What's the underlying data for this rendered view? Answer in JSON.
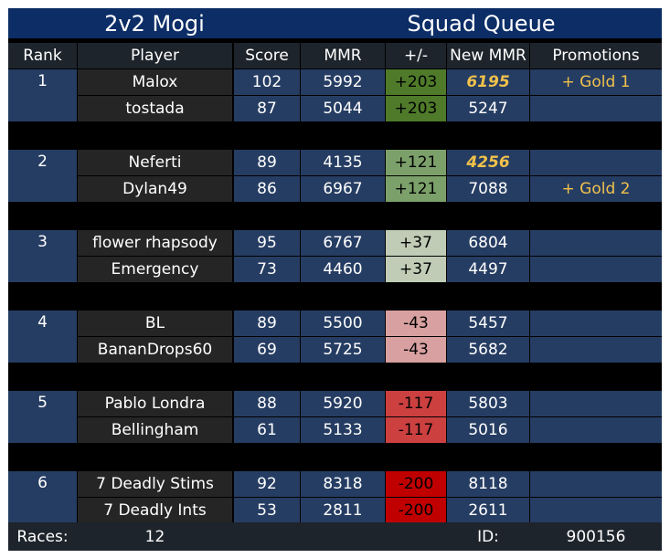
{
  "title": {
    "left": "2v2 Mogi",
    "right": "Squad Queue"
  },
  "headers": {
    "rank": "Rank",
    "player": "Player",
    "score": "Score",
    "mmr": "MMR",
    "delta": "+/-",
    "new_mmr": "New MMR",
    "promotions": "Promotions"
  },
  "teams": [
    {
      "rank": "1",
      "delta_color": "#4e7a29",
      "players": [
        {
          "name": "Malox",
          "score": "102",
          "mmr": "5992",
          "delta": "+203",
          "new_mmr": "6195",
          "new_mmr_highlight": true,
          "promotion": "+ Gold 1"
        },
        {
          "name": "tostada",
          "score": "87",
          "mmr": "5044",
          "delta": "+203",
          "new_mmr": "5247",
          "new_mmr_highlight": false,
          "promotion": ""
        }
      ]
    },
    {
      "rank": "2",
      "delta_color": "#7ca06a",
      "players": [
        {
          "name": "Neferti",
          "score": "89",
          "mmr": "4135",
          "delta": "+121",
          "new_mmr": "4256",
          "new_mmr_highlight": true,
          "promotion": ""
        },
        {
          "name": "Dylan49",
          "score": "86",
          "mmr": "6967",
          "delta": "+121",
          "new_mmr": "7088",
          "new_mmr_highlight": false,
          "promotion": "+ Gold 2"
        }
      ]
    },
    {
      "rank": "3",
      "delta_color": "#c0ccb6",
      "players": [
        {
          "name": "flower rhapsody",
          "score": "95",
          "mmr": "6767",
          "delta": "+37",
          "new_mmr": "6804",
          "new_mmr_highlight": false,
          "promotion": ""
        },
        {
          "name": "Emergency",
          "score": "73",
          "mmr": "4460",
          "delta": "+37",
          "new_mmr": "4497",
          "new_mmr_highlight": false,
          "promotion": ""
        }
      ]
    },
    {
      "rank": "4",
      "delta_color": "#d8a0a0",
      "players": [
        {
          "name": "BL",
          "score": "89",
          "mmr": "5500",
          "delta": "-43",
          "new_mmr": "5457",
          "new_mmr_highlight": false,
          "promotion": ""
        },
        {
          "name": "BananDrops60",
          "score": "69",
          "mmr": "5725",
          "delta": "-43",
          "new_mmr": "5682",
          "new_mmr_highlight": false,
          "promotion": ""
        }
      ]
    },
    {
      "rank": "5",
      "delta_color": "#cc4040",
      "players": [
        {
          "name": "Pablo Londra",
          "score": "88",
          "mmr": "5920",
          "delta": "-117",
          "new_mmr": "5803",
          "new_mmr_highlight": false,
          "promotion": ""
        },
        {
          "name": "Bellingham",
          "score": "61",
          "mmr": "5133",
          "delta": "-117",
          "new_mmr": "5016",
          "new_mmr_highlight": false,
          "promotion": ""
        }
      ]
    },
    {
      "rank": "6",
      "delta_color": "#c00000",
      "players": [
        {
          "name": "7 Deadly Stims",
          "score": "92",
          "mmr": "8318",
          "delta": "-200",
          "new_mmr": "8118",
          "new_mmr_highlight": false,
          "promotion": ""
        },
        {
          "name": "7 Deadly Ints",
          "score": "53",
          "mmr": "2811",
          "delta": "-200",
          "new_mmr": "2611",
          "new_mmr_highlight": false,
          "promotion": ""
        }
      ]
    }
  ],
  "footer": {
    "races_label": "Races:",
    "races_value": "12",
    "id_label": "ID:",
    "id_value": "900156"
  },
  "colors": {
    "title_bg": "#0c2d66",
    "header_bg": "#1e242c",
    "rank_bg": "#263d63",
    "player_bg": "#252525",
    "highlight_text": "#f0c14b"
  }
}
